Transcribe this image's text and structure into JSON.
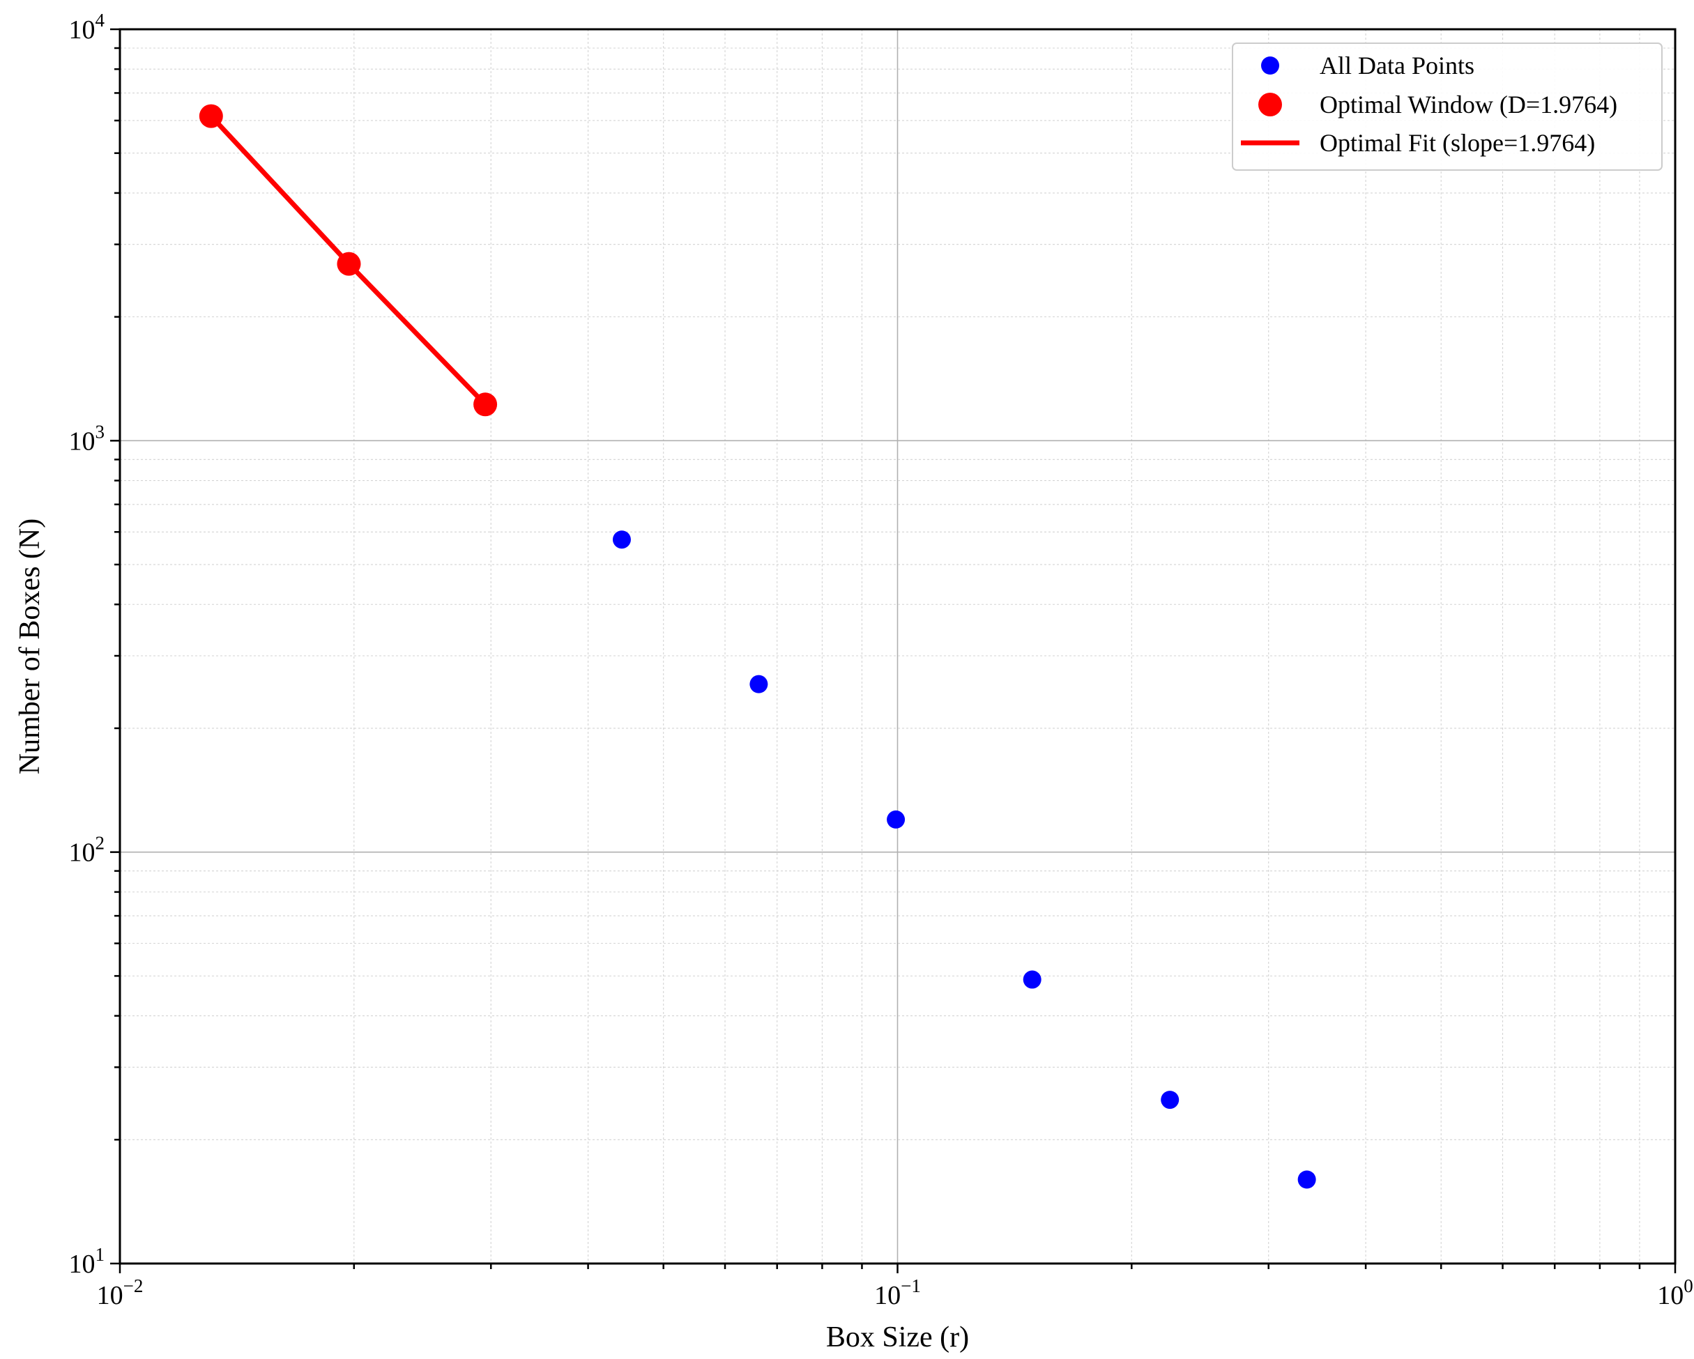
{
  "chart_data": {
    "type": "scatter",
    "xlabel": "Box Size (r)",
    "ylabel": "Number of Boxes (N)",
    "xscale": "log",
    "yscale": "log",
    "xlim": [
      0.01,
      1
    ],
    "ylim": [
      10,
      10000
    ],
    "grid": true,
    "legend_position": "top-right",
    "x_ticks": [
      {
        "base": "10",
        "exp": "−2"
      },
      {
        "base": "10",
        "exp": "−1"
      },
      {
        "base": "10",
        "exp": "0"
      }
    ],
    "y_ticks": [
      {
        "base": "10",
        "exp": "1"
      },
      {
        "base": "10",
        "exp": "2"
      },
      {
        "base": "10",
        "exp": "3"
      },
      {
        "base": "10",
        "exp": "4"
      }
    ],
    "series": [
      {
        "name": "All Data Points",
        "kind": "scatter",
        "color": "#0000ff",
        "points": [
          [
            0.0131,
            6150
          ],
          [
            0.0197,
            2690
          ],
          [
            0.0295,
            1225
          ],
          [
            0.0442,
            575
          ],
          [
            0.0663,
            256
          ],
          [
            0.0995,
            120
          ],
          [
            0.149,
            49
          ],
          [
            0.224,
            25
          ],
          [
            0.336,
            16
          ]
        ]
      },
      {
        "name": "Optimal Window (D=1.9764)",
        "kind": "scatter",
        "color": "#ff0000",
        "points": [
          [
            0.0131,
            6150
          ],
          [
            0.0197,
            2690
          ],
          [
            0.0295,
            1225
          ]
        ]
      },
      {
        "name": "Optimal Fit (slope=1.9764)",
        "kind": "line",
        "color": "#ff0000",
        "points": [
          [
            0.0131,
            6150
          ],
          [
            0.0197,
            2690
          ],
          [
            0.0295,
            1225
          ]
        ]
      }
    ]
  }
}
